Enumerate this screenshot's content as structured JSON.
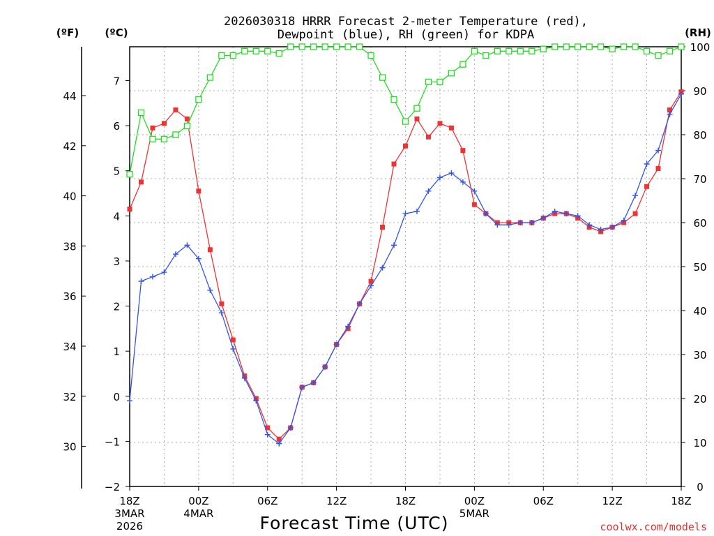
{
  "chart_data": {
    "type": "line",
    "title_line1": "2026030318 HRRR Forecast 2-meter Temperature (red),",
    "title_line2": "Dewpoint (blue), RH (green) for KDPA",
    "unit_f": "(ºF)",
    "unit_c": "(ºC)",
    "unit_rh": "(RH)",
    "xlabel": "Forecast Time (UTC)",
    "credit": "coolwx.com/models",
    "x_ticks": [
      {
        "x": 0,
        "lines": [
          "18Z",
          "3MAR",
          "2026"
        ]
      },
      {
        "x": 6,
        "lines": [
          "00Z",
          "4MAR"
        ]
      },
      {
        "x": 12,
        "lines": [
          "06Z"
        ]
      },
      {
        "x": 18,
        "lines": [
          "12Z"
        ]
      },
      {
        "x": 24,
        "lines": [
          "18Z"
        ]
      },
      {
        "x": 30,
        "lines": [
          "00Z",
          "5MAR"
        ]
      },
      {
        "x": 36,
        "lines": [
          "06Z"
        ]
      },
      {
        "x": 42,
        "lines": [
          "12Z"
        ]
      },
      {
        "x": 48,
        "lines": [
          "18Z"
        ]
      }
    ],
    "xlim": [
      0,
      48
    ],
    "celsius_ticks": [
      -2,
      -1,
      0,
      1,
      2,
      3,
      4,
      5,
      6,
      7
    ],
    "celsius_tick_labels": [
      "−2",
      "−1",
      "0",
      "1",
      "2",
      "3",
      "4",
      "5",
      "6",
      "7"
    ],
    "ylim_c": [
      -2,
      7.75
    ],
    "fahrenheit_ticks": [
      30,
      32,
      34,
      36,
      38,
      40,
      42,
      44
    ],
    "rh_ticks": [
      0,
      10,
      20,
      30,
      40,
      50,
      60,
      70,
      80,
      90,
      100
    ],
    "ylim_rh": [
      0,
      100
    ],
    "series": [
      {
        "name": "Temperature (°C)",
        "color": "#ee3333",
        "marker": "square-filled",
        "values": [
          4.15,
          4.75,
          5.95,
          6.05,
          6.35,
          6.15,
          4.55,
          3.25,
          2.05,
          1.25,
          0.45,
          -0.05,
          -0.7,
          -0.95,
          -0.7,
          0.2,
          0.3,
          0.65,
          1.15,
          1.5,
          2.05,
          2.55,
          3.75,
          5.15,
          5.55,
          6.15,
          5.75,
          6.05,
          5.95,
          5.45,
          4.25,
          4.05,
          3.85,
          3.85,
          3.85,
          3.85,
          3.95,
          4.05,
          4.05,
          3.95,
          3.75,
          3.65,
          3.75,
          3.85,
          4.05,
          4.65,
          5.05,
          6.35,
          6.75
        ]
      },
      {
        "name": "Dewpoint (°C)",
        "color": "#3355ee",
        "marker": "plus",
        "values": [
          -0.1,
          2.55,
          2.65,
          2.75,
          3.15,
          3.35,
          3.05,
          2.35,
          1.85,
          1.05,
          0.4,
          -0.1,
          -0.85,
          -1.05,
          -0.7,
          0.2,
          0.3,
          0.65,
          1.15,
          1.55,
          2.05,
          2.45,
          2.85,
          3.35,
          4.05,
          4.1,
          4.55,
          4.85,
          4.95,
          4.75,
          4.55,
          4.05,
          3.8,
          3.8,
          3.85,
          3.85,
          3.95,
          4.1,
          4.05,
          4.0,
          3.8,
          3.7,
          3.75,
          3.9,
          4.45,
          5.15,
          5.45,
          6.25,
          6.7
        ]
      },
      {
        "name": "RH (%)",
        "color": "#22dd22",
        "marker": "square-open",
        "values": [
          71,
          85,
          79,
          79,
          80,
          82,
          88,
          93,
          98,
          98,
          99,
          99,
          99,
          98.5,
          100,
          100,
          100,
          100,
          100,
          100,
          100,
          98,
          93,
          88,
          83,
          86,
          92,
          92,
          94,
          96,
          99,
          98,
          99,
          99,
          99,
          99,
          99.5,
          100,
          100,
          100,
          100,
          100,
          99.5,
          100,
          100,
          99,
          98,
          99,
          100
        ]
      }
    ]
  }
}
